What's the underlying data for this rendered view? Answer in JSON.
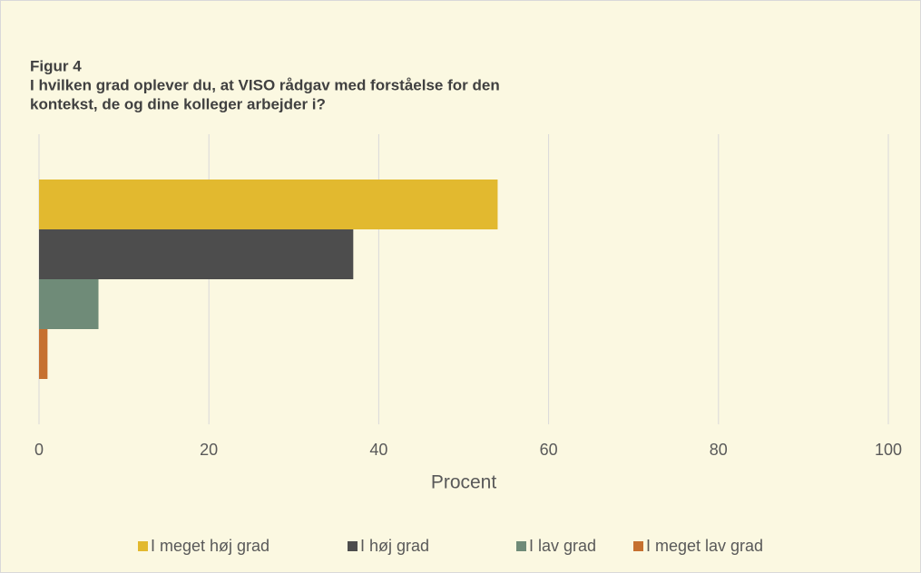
{
  "chart_data": {
    "type": "bar",
    "orientation": "horizontal",
    "title": "Figur 4",
    "subtitle": [
      "I hvilken grad oplever du, at VISO rådgav med forståelse for den",
      "kontekst, de og dine kolleger arbejder i?"
    ],
    "categories": [
      null
    ],
    "series": [
      {
        "name": "I meget høj grad",
        "color": "#e2b92f",
        "values": [
          54
        ]
      },
      {
        "name": "I høj grad",
        "color": "#4d4d4d",
        "values": [
          37
        ]
      },
      {
        "name": "I lav grad",
        "color": "#6f8b78",
        "values": [
          7
        ]
      },
      {
        "name": "I meget lav grad",
        "color": "#c6702f",
        "values": [
          1
        ]
      }
    ],
    "xlabel": "Procent",
    "xlim": [
      0,
      100
    ],
    "xticks": [
      0,
      20,
      40,
      60,
      80,
      100
    ],
    "grid": true,
    "legend": "bottom"
  }
}
